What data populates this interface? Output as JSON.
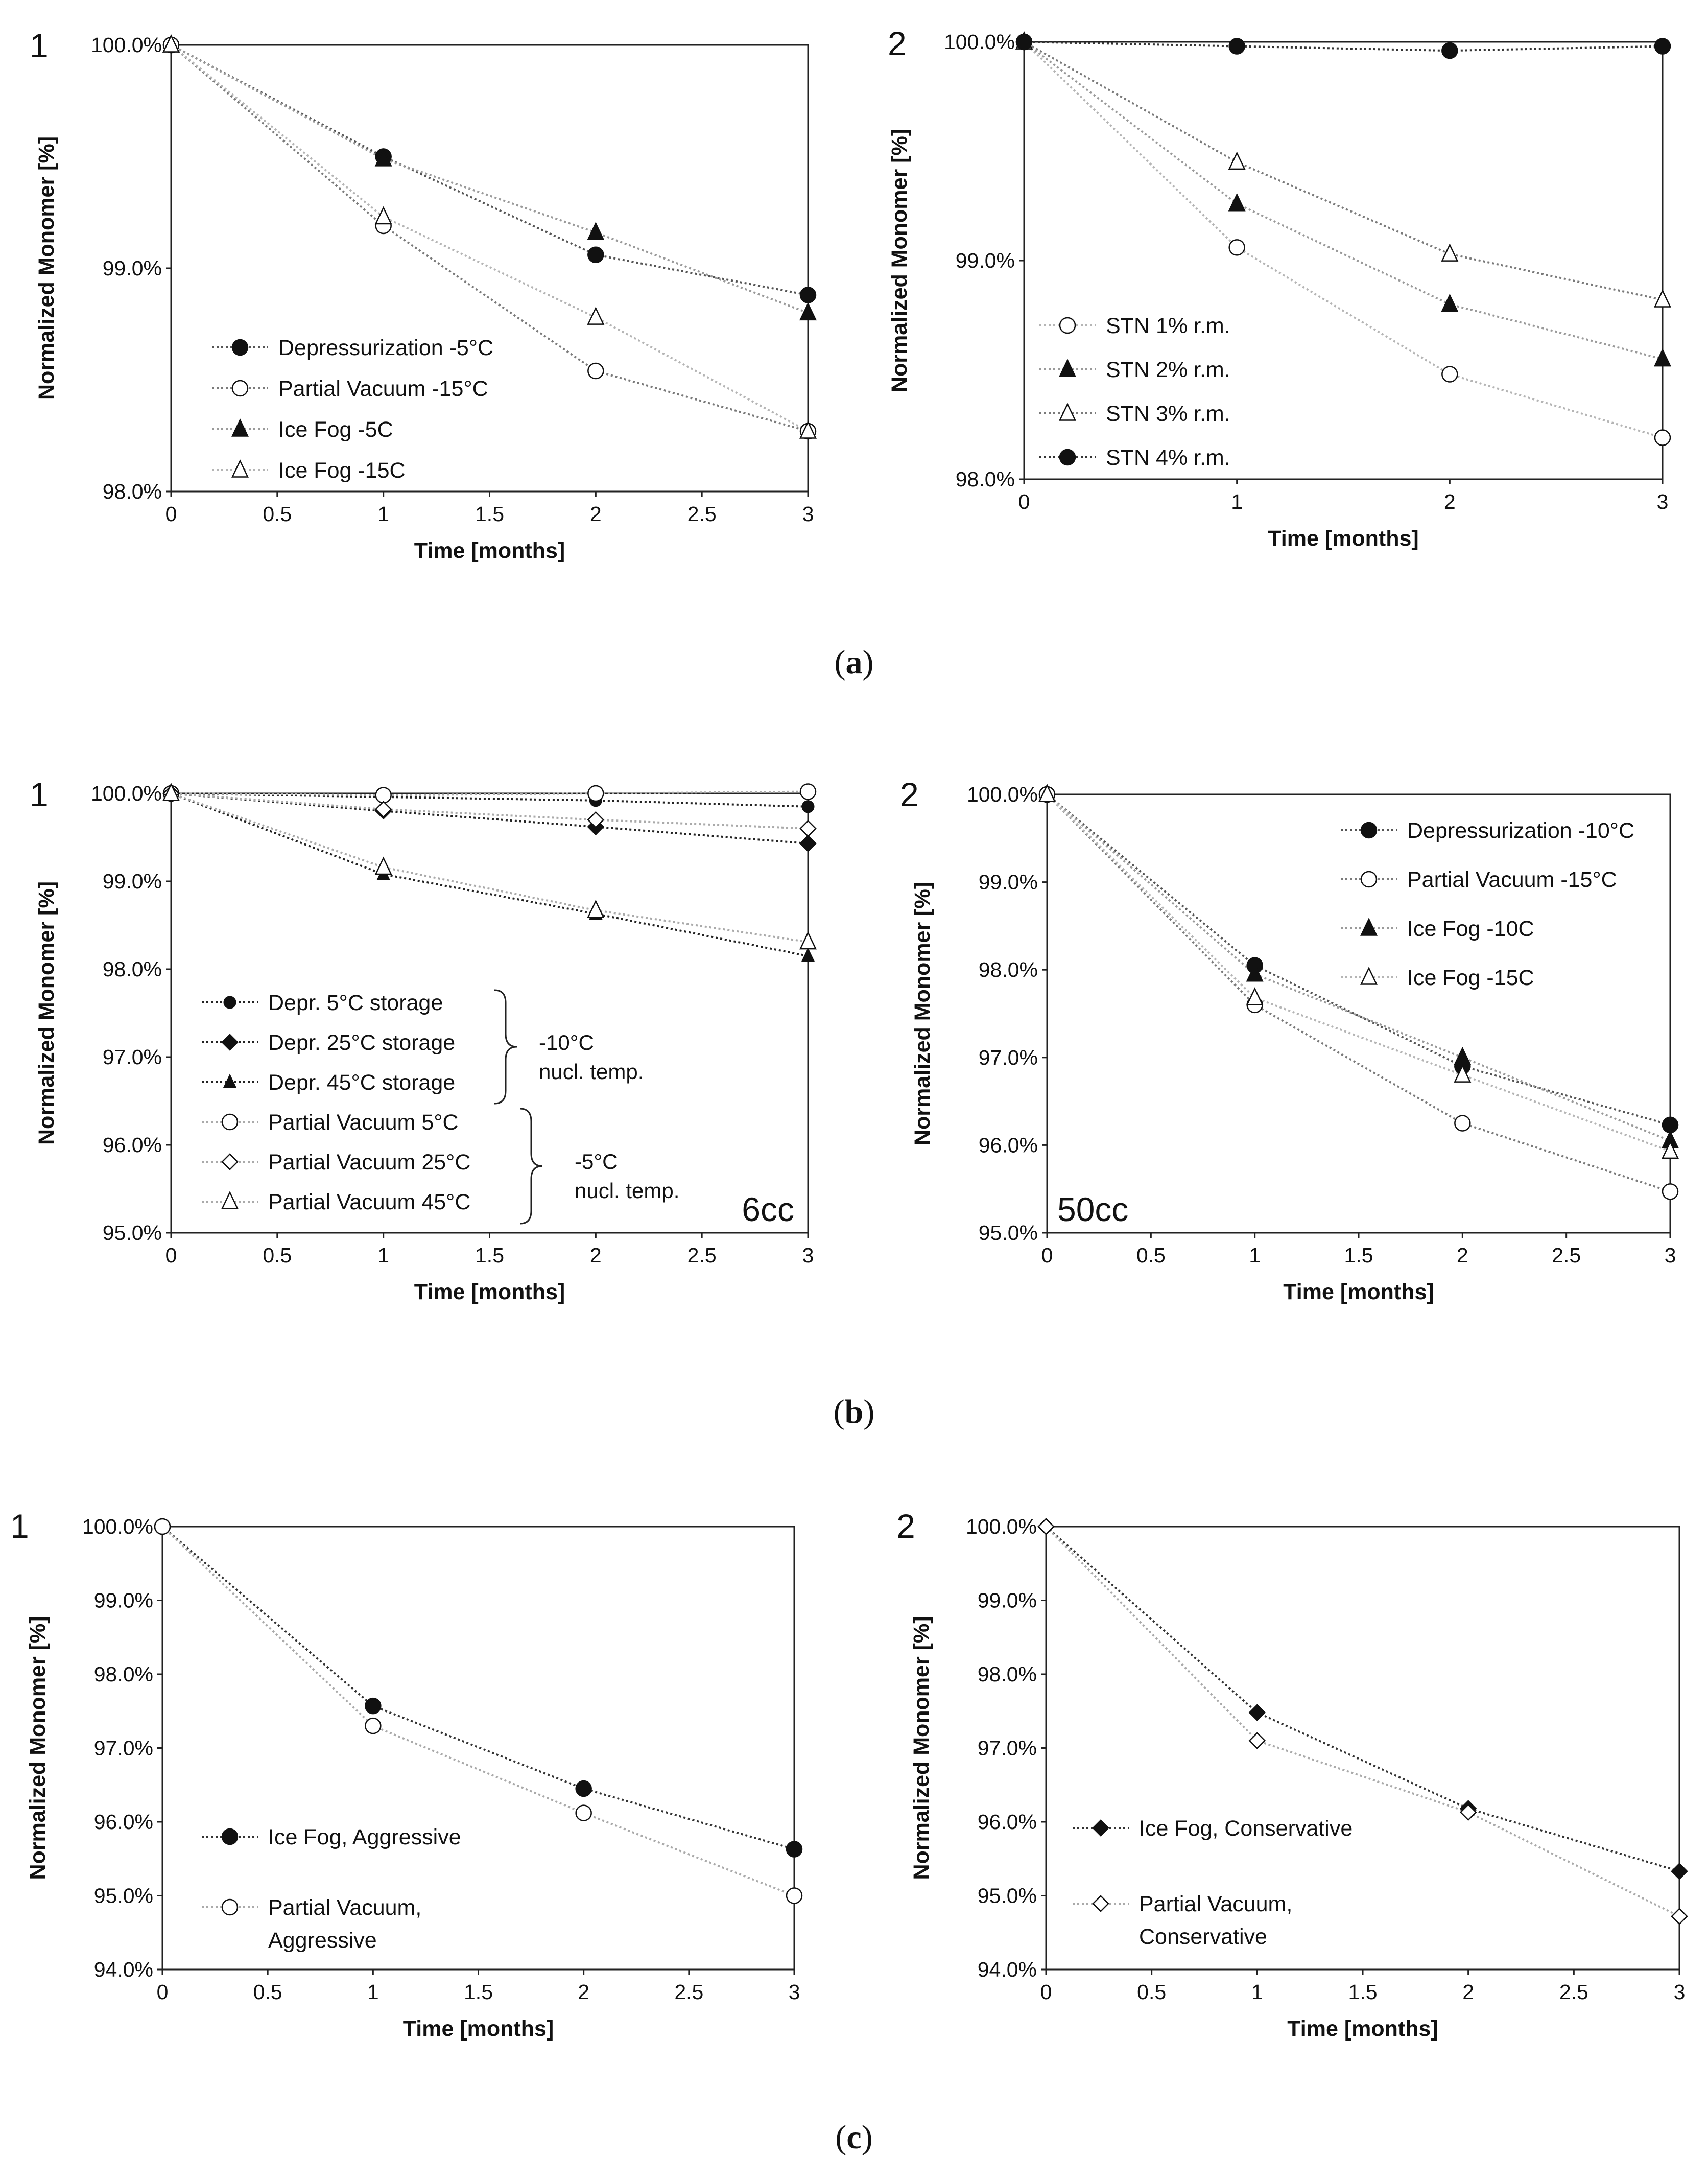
{
  "captions": [
    "(a)",
    "(b)",
    "(c)"
  ],
  "chart_data": [
    {
      "id": "a1",
      "type": "line",
      "panel_label": "1",
      "xlabel": "Time [months]",
      "ylabel": "Normalized Monomer [%]",
      "xlim": [
        0,
        3
      ],
      "ylim": [
        98.0,
        100.0
      ],
      "xticks": [
        0,
        0.5,
        1,
        1.5,
        2,
        2.5,
        3
      ],
      "xtick_labels": [
        "0",
        "0.5",
        "1",
        "1.5",
        "2",
        "2.5",
        "3"
      ],
      "yticks": [
        98.0,
        99.0,
        100.0
      ],
      "ytick_labels": [
        "98.0%",
        "99.0%",
        "100.0%"
      ],
      "legend_position": "bottom-left",
      "series": [
        {
          "name": "Depressurization -5°C",
          "marker": "circle-filled",
          "line_color": "#555555",
          "x": [
            0,
            1,
            2,
            3
          ],
          "y": [
            100.0,
            99.5,
            99.06,
            98.88
          ]
        },
        {
          "name": "Partial Vacuum -15°C",
          "marker": "circle-open",
          "line_color": "#7a7a7a",
          "x": [
            0,
            1,
            2,
            3
          ],
          "y": [
            100.0,
            99.19,
            98.54,
            98.27
          ]
        },
        {
          "name": "Ice Fog -5C",
          "marker": "triangle-filled",
          "line_color": "#9a9a9a",
          "x": [
            0,
            1,
            2,
            3
          ],
          "y": [
            100.0,
            99.49,
            99.16,
            98.8
          ]
        },
        {
          "name": "Ice Fog -15C",
          "marker": "triangle-open",
          "line_color": "#b5b5b5",
          "x": [
            0,
            1,
            2,
            3
          ],
          "y": [
            100.0,
            99.23,
            98.78,
            98.27
          ]
        }
      ]
    },
    {
      "id": "a2",
      "type": "line",
      "panel_label": "2",
      "xlabel": "Time [months]",
      "ylabel": "Normalized Monomer [%]",
      "xlim": [
        0,
        3
      ],
      "ylim": [
        98.0,
        100.0
      ],
      "xticks": [
        0,
        1,
        2,
        3
      ],
      "xtick_labels": [
        "0",
        "1",
        "2",
        "3"
      ],
      "yticks": [
        98.0,
        99.0,
        100.0
      ],
      "ytick_labels": [
        "98.0%",
        "99.0%",
        "100.0%"
      ],
      "legend_position": "bottom-left",
      "series": [
        {
          "name": "STN 1% r.m.",
          "marker": "circle-open",
          "line_color": "#b5b5b5",
          "x": [
            0,
            1,
            2,
            3
          ],
          "y": [
            100.0,
            99.06,
            98.48,
            98.19
          ]
        },
        {
          "name": "STN 2% r.m.",
          "marker": "triangle-filled",
          "line_color": "#9a9a9a",
          "x": [
            0,
            1,
            2,
            3
          ],
          "y": [
            100.0,
            99.26,
            98.8,
            98.55
          ]
        },
        {
          "name": "STN 3% r.m.",
          "marker": "triangle-open",
          "line_color": "#7a7a7a",
          "x": [
            0,
            1,
            2,
            3
          ],
          "y": [
            100.0,
            99.45,
            99.03,
            98.82
          ]
        },
        {
          "name": "STN 4% r.m.",
          "marker": "circle-filled",
          "line_color": "#333333",
          "x": [
            0,
            1,
            2,
            3
          ],
          "y": [
            100.0,
            99.98,
            99.96,
            99.98
          ]
        }
      ]
    },
    {
      "id": "b1",
      "type": "line",
      "panel_label": "1",
      "xlabel": "Time [months]",
      "ylabel": "Normalized Monomer [%]",
      "xlim": [
        0,
        3
      ],
      "ylim": [
        95.0,
        100.0
      ],
      "xticks": [
        0,
        0.5,
        1,
        1.5,
        2,
        2.5,
        3
      ],
      "xtick_labels": [
        "0",
        "0.5",
        "1",
        "1.5",
        "2",
        "2.5",
        "3"
      ],
      "yticks": [
        95.0,
        96.0,
        97.0,
        98.0,
        99.0,
        100.0
      ],
      "ytick_labels": [
        "95.0%",
        "96.0%",
        "97.0%",
        "98.0%",
        "99.0%",
        "100.0%"
      ],
      "legend_position": "bottom-left",
      "annotations": {
        "group1": [
          "-10°C",
          "nucl. temp."
        ],
        "group2": [
          "-5°C",
          "nucl. temp."
        ],
        "corner": "6cc"
      },
      "series": [
        {
          "name": "Depr. 5°C storage",
          "marker": "circle-filled-small",
          "line_color": "#222222",
          "x": [
            0,
            1,
            2,
            3
          ],
          "y": [
            100.0,
            99.96,
            99.92,
            99.85
          ]
        },
        {
          "name": "Depr. 25°C storage",
          "marker": "diamond-filled",
          "line_color": "#222222",
          "x": [
            0,
            1,
            2,
            3
          ],
          "y": [
            100.0,
            99.8,
            99.62,
            99.43
          ]
        },
        {
          "name": "Depr. 45°C storage",
          "marker": "triangle-filled-small",
          "line_color": "#222222",
          "x": [
            0,
            1,
            2,
            3
          ],
          "y": [
            100.0,
            99.08,
            98.63,
            98.15
          ]
        },
        {
          "name": "Partial Vacuum 5°C",
          "marker": "circle-open",
          "line_color": "#aaaaaa",
          "x": [
            0,
            1,
            2,
            3
          ],
          "y": [
            100.0,
            99.98,
            100.0,
            100.02
          ]
        },
        {
          "name": "Partial Vacuum 25°C",
          "marker": "diamond-open",
          "line_color": "#aaaaaa",
          "x": [
            0,
            1,
            2,
            3
          ],
          "y": [
            100.0,
            99.82,
            99.7,
            99.6
          ]
        },
        {
          "name": "Partial Vacuum 45°C",
          "marker": "triangle-open",
          "line_color": "#aaaaaa",
          "x": [
            0,
            1,
            2,
            3
          ],
          "y": [
            100.0,
            99.16,
            98.67,
            98.31
          ]
        }
      ]
    },
    {
      "id": "b2",
      "type": "line",
      "panel_label": "2",
      "xlabel": "Time [months]",
      "ylabel": "Normalized Monomer [%]",
      "xlim": [
        0,
        3
      ],
      "ylim": [
        95.0,
        100.0
      ],
      "xticks": [
        0,
        0.5,
        1,
        1.5,
        2,
        2.5,
        3
      ],
      "xtick_labels": [
        "0",
        "0.5",
        "1",
        "1.5",
        "2",
        "2.5",
        "3"
      ],
      "yticks": [
        95.0,
        96.0,
        97.0,
        98.0,
        99.0,
        100.0
      ],
      "ytick_labels": [
        "95.0%",
        "96.0%",
        "97.0%",
        "98.0%",
        "99.0%",
        "100.0%"
      ],
      "legend_position": "top-right",
      "annotations": {
        "corner": "50cc"
      },
      "series": [
        {
          "name": "Depressurization -10°C",
          "marker": "circle-filled",
          "line_color": "#555555",
          "x": [
            0,
            1,
            2,
            3
          ],
          "y": [
            100.0,
            98.05,
            96.9,
            96.23
          ]
        },
        {
          "name": "Partial Vacuum -15°C",
          "marker": "circle-open",
          "line_color": "#7a7a7a",
          "x": [
            0,
            1,
            2,
            3
          ],
          "y": [
            100.0,
            97.6,
            96.25,
            95.47
          ]
        },
        {
          "name": "Ice Fog -10C",
          "marker": "triangle-filled",
          "line_color": "#9a9a9a",
          "x": [
            0,
            1,
            2,
            3
          ],
          "y": [
            100.0,
            97.95,
            97.0,
            96.05
          ]
        },
        {
          "name": "Ice Fog -15C",
          "marker": "triangle-open",
          "line_color": "#b5b5b5",
          "x": [
            0,
            1,
            2,
            3
          ],
          "y": [
            100.0,
            97.68,
            96.8,
            95.93
          ]
        }
      ]
    },
    {
      "id": "c1",
      "type": "line",
      "panel_label": "1",
      "xlabel": "Time [months]",
      "ylabel": "Normalized Monomer [%]",
      "xlim": [
        0,
        3
      ],
      "ylim": [
        94.0,
        100.0
      ],
      "xticks": [
        0,
        0.5,
        1,
        1.5,
        2,
        2.5,
        3
      ],
      "xtick_labels": [
        "0",
        "0.5",
        "1",
        "1.5",
        "2",
        "2.5",
        "3"
      ],
      "yticks": [
        94.0,
        95.0,
        96.0,
        97.0,
        98.0,
        99.0,
        100.0
      ],
      "ytick_labels": [
        "94.0%",
        "95.0%",
        "96.0%",
        "97.0%",
        "98.0%",
        "99.0%",
        "100.0%"
      ],
      "legend_position": "bottom-left",
      "series": [
        {
          "name": "Ice Fog, Aggressive",
          "marker": "circle-filled",
          "line_color": "#333333",
          "x": [
            0,
            1,
            2,
            3
          ],
          "y": [
            100.0,
            97.57,
            96.45,
            95.63
          ]
        },
        {
          "name": "Partial Vacuum, Aggressive",
          "legend_lines": [
            "Partial Vacuum,",
            "Aggressive"
          ],
          "marker": "circle-open",
          "line_color": "#aaaaaa",
          "x": [
            0,
            1,
            2,
            3
          ],
          "y": [
            100.0,
            97.3,
            96.12,
            95.0
          ]
        }
      ]
    },
    {
      "id": "c2",
      "type": "line",
      "panel_label": "2",
      "xlabel": "Time [months]",
      "ylabel": "Normalized Monomer [%]",
      "xlim": [
        0,
        3
      ],
      "ylim": [
        94.0,
        100.0
      ],
      "xticks": [
        0,
        0.5,
        1,
        1.5,
        2,
        2.5,
        3
      ],
      "xtick_labels": [
        "0",
        "0.5",
        "1",
        "1.5",
        "2",
        "2.5",
        "3"
      ],
      "yticks": [
        94.0,
        95.0,
        96.0,
        97.0,
        98.0,
        99.0,
        100.0
      ],
      "ytick_labels": [
        "94.0%",
        "95.0%",
        "96.0%",
        "97.0%",
        "98.0%",
        "99.0%",
        "100.0%"
      ],
      "legend_position": "middle-left",
      "series": [
        {
          "name": "Ice Fog, Conservative",
          "marker": "diamond-filled",
          "line_color": "#333333",
          "x": [
            0,
            1,
            2,
            3
          ],
          "y": [
            100.0,
            97.48,
            96.18,
            95.33
          ]
        },
        {
          "name": "Partial Vacuum, Conservative",
          "legend_lines": [
            "Partial Vacuum,",
            "Conservative"
          ],
          "marker": "diamond-open",
          "line_color": "#aaaaaa",
          "x": [
            0,
            1,
            2,
            3
          ],
          "y": [
            100.0,
            97.1,
            96.13,
            94.72
          ]
        }
      ]
    }
  ]
}
